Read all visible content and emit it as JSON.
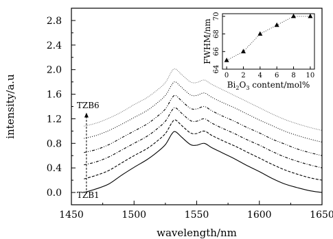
{
  "chart_data": [
    {
      "type": "line",
      "xlabel": "wavelength/nm",
      "ylabel": "intensity/a.u",
      "xlim": [
        1450,
        1650
      ],
      "ylim": [
        -0.2,
        3.0
      ],
      "x_ticks": [
        1450,
        1500,
        1550,
        1600,
        1650
      ],
      "y_ticks": [
        0.0,
        0.4,
        0.8,
        1.2,
        1.6,
        2.0,
        2.4,
        2.8
      ],
      "x_tick_labels": [
        "1450",
        "1500",
        "1550",
        "1600",
        "1650"
      ],
      "y_tick_labels": [
        "0.0",
        "0.4",
        "0.8",
        "1.2",
        "1.6",
        "2.0",
        "2.4",
        "2.8"
      ],
      "grid": false,
      "x": [
        1460,
        1470,
        1480,
        1490,
        1500,
        1510,
        1518,
        1525,
        1530,
        1533,
        1538,
        1545,
        1550,
        1556,
        1562,
        1570,
        1580,
        1590,
        1600,
        1610,
        1620,
        1630,
        1640,
        1650
      ],
      "series": [
        {
          "line_style": "solid",
          "values": [
            0.0,
            0.06,
            0.14,
            0.28,
            0.41,
            0.53,
            0.65,
            0.78,
            0.95,
            0.99,
            0.9,
            0.78,
            0.77,
            0.8,
            0.73,
            0.65,
            0.55,
            0.44,
            0.34,
            0.23,
            0.14,
            0.08,
            0.03,
            0.0
          ]
        },
        {
          "line_style": "dashed",
          "values": [
            0.22,
            0.28,
            0.36,
            0.48,
            0.6,
            0.71,
            0.83,
            0.96,
            1.13,
            1.18,
            1.09,
            0.97,
            0.96,
            1.0,
            0.93,
            0.85,
            0.76,
            0.66,
            0.56,
            0.46,
            0.37,
            0.3,
            0.24,
            0.2
          ]
        },
        {
          "line_style": "dash-dot",
          "values": [
            0.45,
            0.5,
            0.58,
            0.69,
            0.8,
            0.91,
            1.03,
            1.16,
            1.33,
            1.38,
            1.29,
            1.17,
            1.16,
            1.2,
            1.13,
            1.05,
            0.96,
            0.86,
            0.77,
            0.67,
            0.58,
            0.51,
            0.45,
            0.4
          ]
        },
        {
          "line_style": "dash-dot-dot",
          "values": [
            0.65,
            0.7,
            0.78,
            0.89,
            1.0,
            1.11,
            1.23,
            1.36,
            1.53,
            1.58,
            1.49,
            1.37,
            1.36,
            1.4,
            1.33,
            1.25,
            1.16,
            1.06,
            0.97,
            0.87,
            0.79,
            0.71,
            0.65,
            0.6
          ]
        },
        {
          "line_style": "short-dot",
          "values": [
            0.88,
            0.93,
            1.01,
            1.11,
            1.22,
            1.33,
            1.45,
            1.58,
            1.75,
            1.8,
            1.71,
            1.59,
            1.58,
            1.62,
            1.55,
            1.47,
            1.38,
            1.28,
            1.18,
            1.09,
            1.0,
            0.93,
            0.87,
            0.82
          ]
        },
        {
          "line_style": "light-dotted",
          "values": [
            1.08,
            1.13,
            1.21,
            1.31,
            1.43,
            1.54,
            1.66,
            1.79,
            1.97,
            2.01,
            1.92,
            1.8,
            1.79,
            1.83,
            1.76,
            1.68,
            1.58,
            1.48,
            1.38,
            1.28,
            1.19,
            1.12,
            1.06,
            1.01
          ]
        }
      ],
      "annotations": [
        {
          "text": "TZB6",
          "x": 1462,
          "y": 1.37
        },
        {
          "text": "TZB1",
          "x": 1462,
          "y": -0.09
        }
      ],
      "arrow": {
        "x": 1462,
        "from_y": -0.02,
        "to_y": 1.3
      }
    },
    {
      "type": "line",
      "inset": true,
      "xlabel_parts": [
        "Bi",
        "2",
        "O",
        "3",
        " content/mol%"
      ],
      "ylabel": "FWHM/nm",
      "xlim": [
        -0.5,
        10.5
      ],
      "ylim": [
        64,
        70.3
      ],
      "x_ticks": [
        0,
        2,
        4,
        6,
        8,
        10
      ],
      "y_ticks": [
        64,
        66,
        68,
        70
      ],
      "x_tick_labels": [
        "0",
        "2",
        "4",
        "6",
        "8",
        "10"
      ],
      "y_tick_labels": [
        "64",
        "66",
        "68",
        "70"
      ],
      "x": [
        0,
        2,
        4,
        6,
        8,
        10
      ],
      "values": [
        65,
        66,
        68,
        69,
        70,
        70
      ],
      "marker": "triangle"
    }
  ]
}
